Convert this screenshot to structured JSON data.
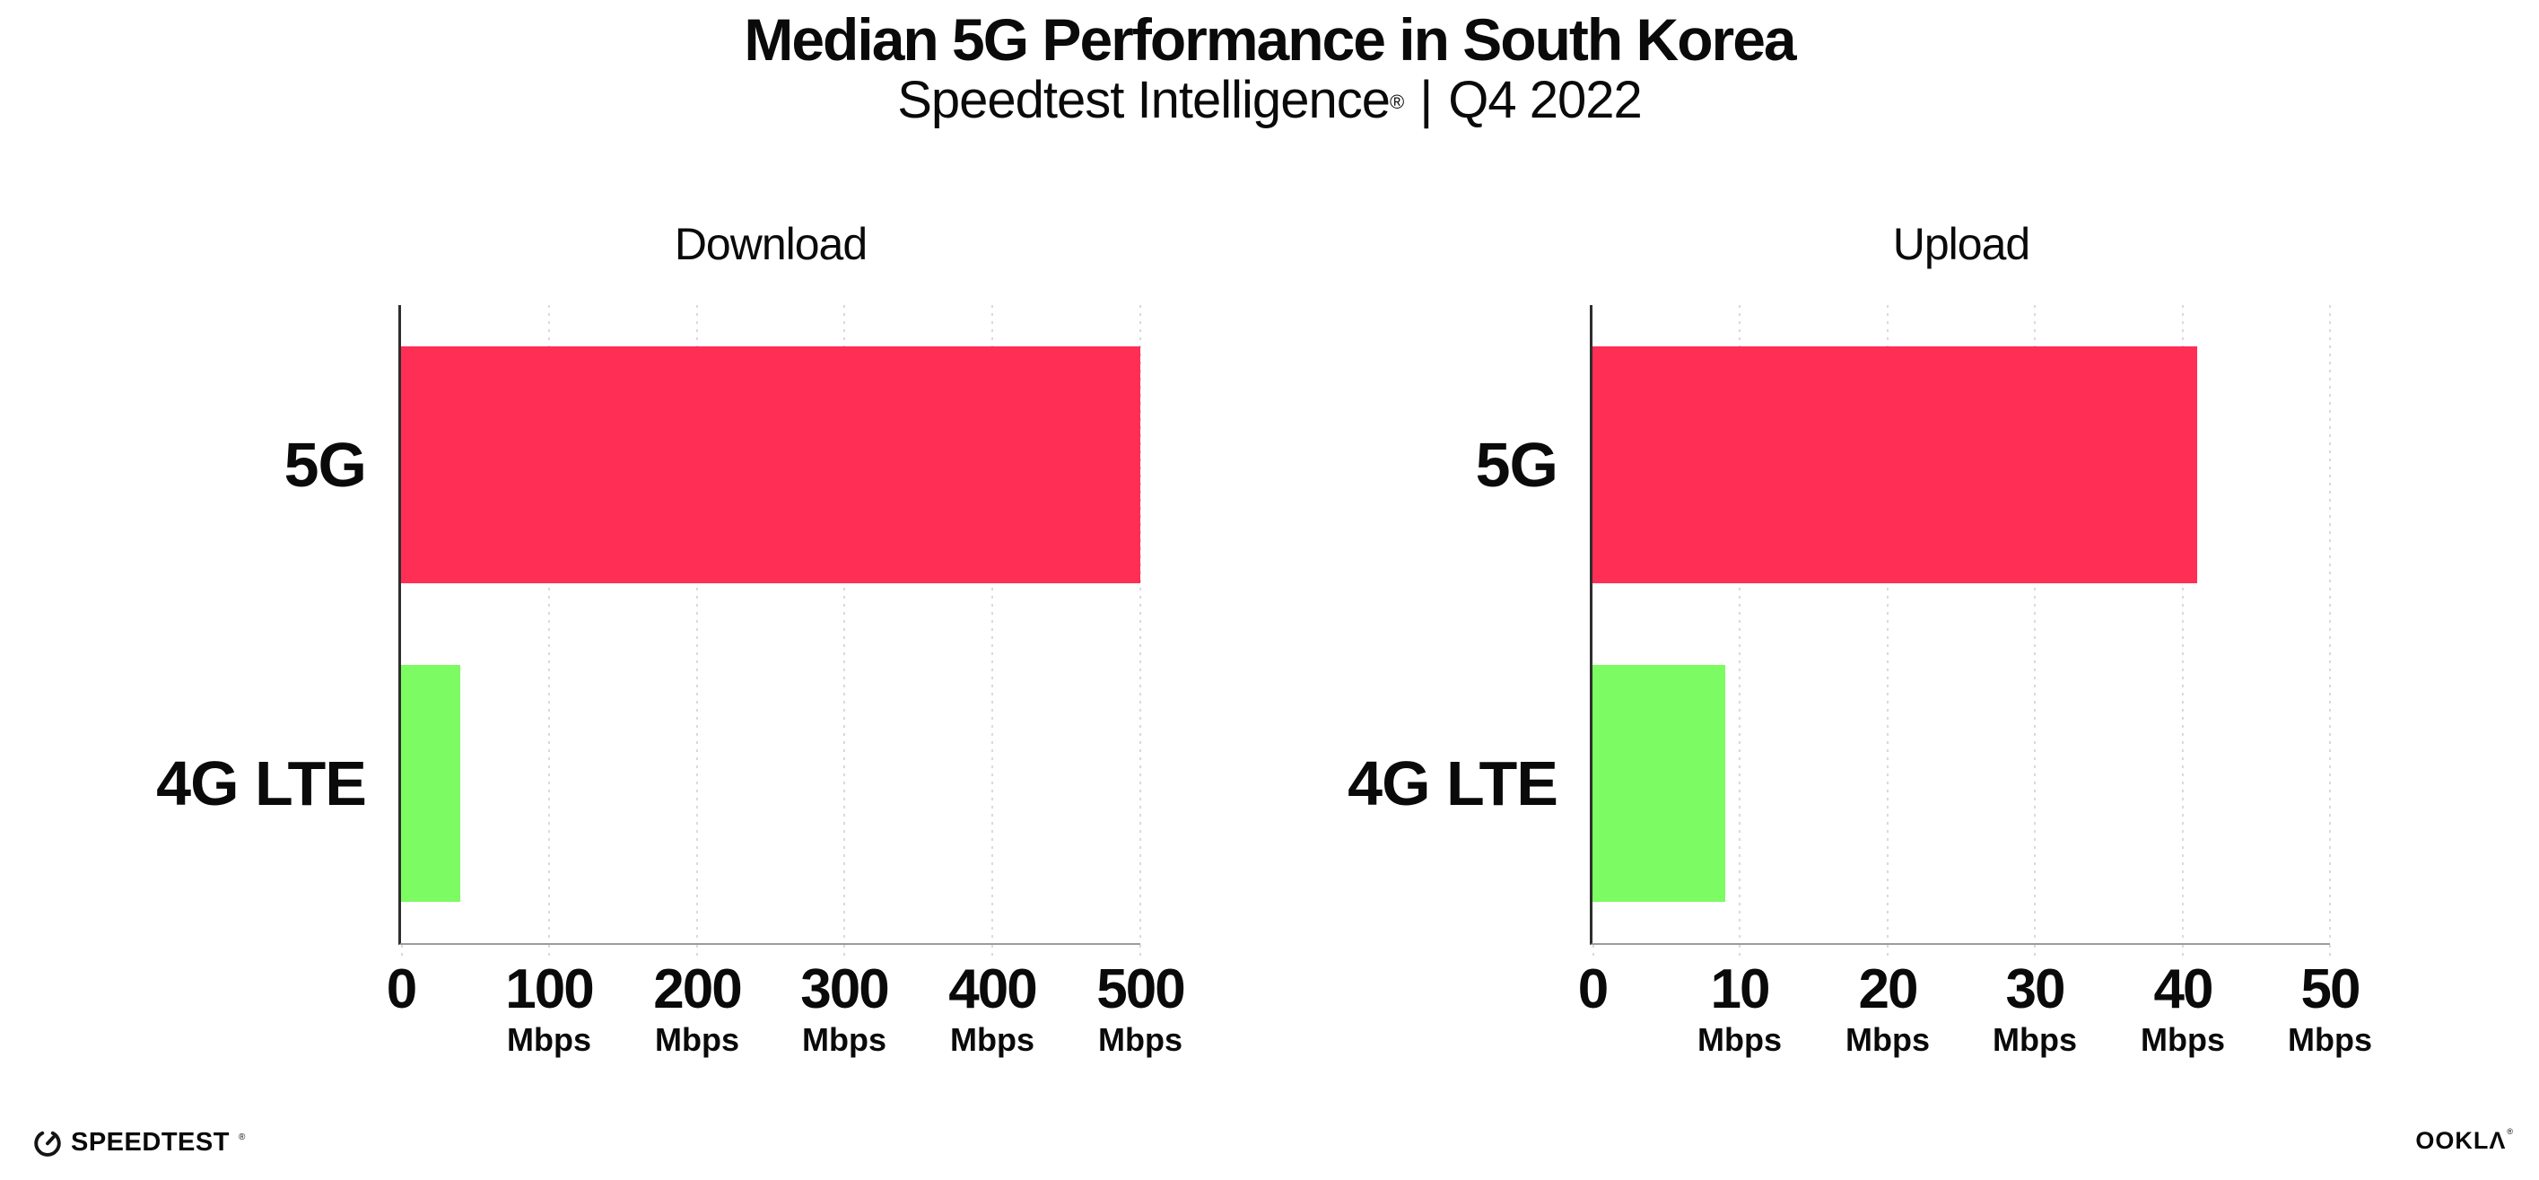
{
  "header": {
    "title": "Median 5G Performance in South Korea",
    "subtitle_brand": "Speedtest Intelligence",
    "subtitle_reg": "®",
    "subtitle_separator": "|",
    "subtitle_period": "Q4 2022"
  },
  "chart_data": [
    {
      "type": "bar",
      "orientation": "horizontal",
      "title": "Download",
      "categories": [
        "5G",
        "4G LTE"
      ],
      "values": [
        500,
        40
      ],
      "unit": "Mbps",
      "xlim": [
        0,
        500
      ],
      "xticks": [
        0,
        100,
        200,
        300,
        400,
        500
      ],
      "xtick_unit": "Mbps",
      "bar_colors": [
        "#ff2e55",
        "#7cfb62"
      ],
      "grid": true,
      "legend": "none"
    },
    {
      "type": "bar",
      "orientation": "horizontal",
      "title": "Upload",
      "categories": [
        "5G",
        "4G LTE"
      ],
      "values": [
        41,
        9
      ],
      "unit": "Mbps",
      "xlim": [
        0,
        50
      ],
      "xticks": [
        0,
        10,
        20,
        30,
        40,
        50
      ],
      "xtick_unit": "Mbps",
      "bar_colors": [
        "#ff2e55",
        "#7cfb62"
      ],
      "grid": true,
      "legend": "none"
    }
  ],
  "colors": {
    "bar_5g": "#ff2e55",
    "bar_4g_lte": "#7cfb62",
    "gridline": "#d9d9e0",
    "axis_left": "#2e2e2e",
    "axis_bottom": "#9c9c9c",
    "text": "#0a0a0a",
    "background": "#ffffff"
  },
  "footer": {
    "speedtest_label": "SPEEDTEST",
    "speedtest_mark": "®",
    "ookla_label": "OOKLΛ",
    "ookla_mark": "®"
  }
}
